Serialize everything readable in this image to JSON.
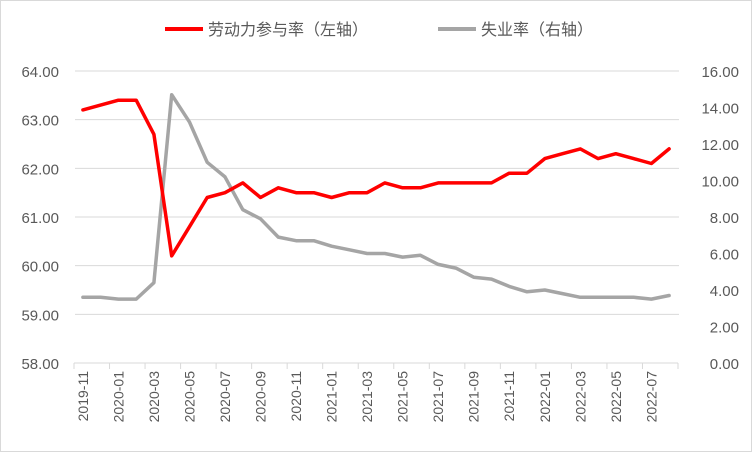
{
  "chart_data": {
    "type": "line",
    "title": "",
    "categories": [
      "2019-11",
      "2019-12",
      "2020-01",
      "2020-02",
      "2020-03",
      "2020-04",
      "2020-05",
      "2020-06",
      "2020-07",
      "2020-08",
      "2020-09",
      "2020-10",
      "2020-11",
      "2020-12",
      "2021-01",
      "2021-02",
      "2021-03",
      "2021-04",
      "2021-05",
      "2021-06",
      "2021-07",
      "2021-08",
      "2021-09",
      "2021-10",
      "2021-11",
      "2021-12",
      "2022-01",
      "2022-02",
      "2022-03",
      "2022-04",
      "2022-05",
      "2022-06",
      "2022-07",
      "2022-08"
    ],
    "tick_labels": [
      "2019-11",
      "2020-01",
      "2020-03",
      "2020-05",
      "2020-07",
      "2020-09",
      "2020-11",
      "2021-01",
      "2021-03",
      "2021-05",
      "2021-07",
      "2021-09",
      "2021-11",
      "2022-01",
      "2022-03",
      "2022-05",
      "2022-07"
    ],
    "series": [
      {
        "name": "劳动力参与率（左轴）",
        "axis": "left",
        "color": "#ff0000",
        "values": [
          63.2,
          63.3,
          63.4,
          63.4,
          62.7,
          60.2,
          60.8,
          61.4,
          61.5,
          61.7,
          61.4,
          61.6,
          61.5,
          61.5,
          61.4,
          61.5,
          61.5,
          61.7,
          61.6,
          61.6,
          61.7,
          61.7,
          61.7,
          61.7,
          61.9,
          61.9,
          62.2,
          62.3,
          62.4,
          62.2,
          62.3,
          62.2,
          62.1,
          62.4
        ]
      },
      {
        "name": "失业率（右轴）",
        "axis": "right",
        "color": "#a5a5a5",
        "values": [
          3.6,
          3.6,
          3.5,
          3.5,
          4.4,
          14.7,
          13.2,
          11.0,
          10.2,
          8.4,
          7.9,
          6.9,
          6.7,
          6.7,
          6.4,
          6.2,
          6.0,
          6.0,
          5.8,
          5.9,
          5.4,
          5.2,
          4.7,
          4.6,
          4.2,
          3.9,
          4.0,
          3.8,
          3.6,
          3.6,
          3.6,
          3.6,
          3.5,
          3.7
        ]
      }
    ],
    "y_left": {
      "lim": [
        58,
        64
      ],
      "ticks": [
        "58.00",
        "59.00",
        "60.00",
        "61.00",
        "62.00",
        "63.00",
        "64.00"
      ]
    },
    "y_right": {
      "lim": [
        0,
        16
      ],
      "ticks": [
        "0.00",
        "2.00",
        "4.00",
        "6.00",
        "8.00",
        "10.00",
        "12.00",
        "14.00",
        "16.00"
      ]
    },
    "grid": true,
    "legend_position": "top-center"
  }
}
